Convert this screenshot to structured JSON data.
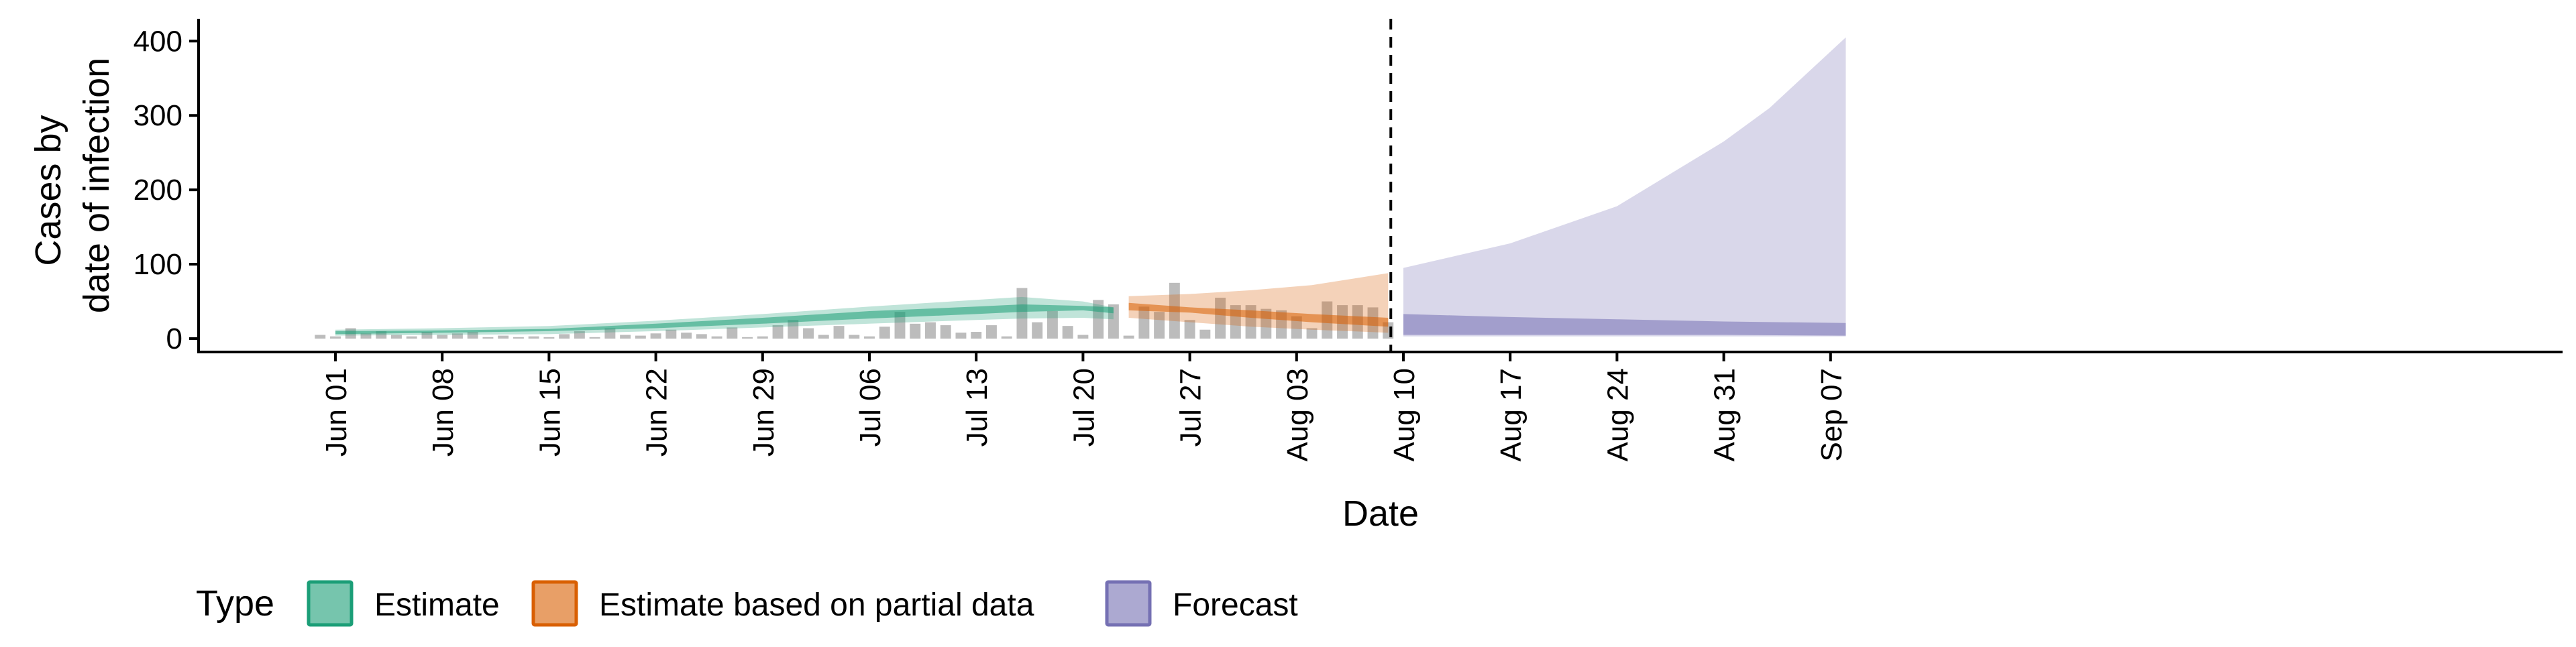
{
  "chart_data": {
    "type": "area",
    "xlabel": "Date",
    "ylabel_lines": [
      "Cases by",
      "date of infection"
    ],
    "ylim": [
      -18,
      430
    ],
    "yticks": [
      0,
      100,
      200,
      300,
      400
    ],
    "xlim": [
      "2020-05-24",
      "2020-09-14"
    ],
    "xticks": [
      {
        "date": "2020-06-01",
        "label": "Jun 01"
      },
      {
        "date": "2020-06-08",
        "label": "Jun 08"
      },
      {
        "date": "2020-06-15",
        "label": "Jun 15"
      },
      {
        "date": "2020-06-22",
        "label": "Jun 22"
      },
      {
        "date": "2020-06-29",
        "label": "Jun 29"
      },
      {
        "date": "2020-07-06",
        "label": "Jul 06"
      },
      {
        "date": "2020-07-13",
        "label": "Jul 13"
      },
      {
        "date": "2020-07-20",
        "label": "Jul 20"
      },
      {
        "date": "2020-07-27",
        "label": "Jul 27"
      },
      {
        "date": "2020-08-03",
        "label": "Aug 03"
      },
      {
        "date": "2020-08-10",
        "label": "Aug 10"
      },
      {
        "date": "2020-08-17",
        "label": "Aug 17"
      },
      {
        "date": "2020-08-24",
        "label": "Aug 24"
      },
      {
        "date": "2020-08-31",
        "label": "Aug 31"
      },
      {
        "date": "2020-09-07",
        "label": "Sep 07"
      }
    ],
    "vline_date": "2020-08-09",
    "grid": false,
    "legend": {
      "position": "bottom-left",
      "title": "Type",
      "entries": [
        {
          "label": "Estimate",
          "color": "#1b9e77"
        },
        {
          "label": "Estimate based on partial data",
          "color": "#d95f02"
        },
        {
          "label": "Forecast",
          "color": "#7570b3"
        }
      ]
    },
    "bars": {
      "color": "#a6a6a6",
      "data": [
        [
          "2020-05-31",
          5
        ],
        [
          "2020-06-01",
          3
        ],
        [
          "2020-06-02",
          14
        ],
        [
          "2020-06-03",
          7
        ],
        [
          "2020-06-04",
          10
        ],
        [
          "2020-06-05",
          5
        ],
        [
          "2020-06-06",
          3
        ],
        [
          "2020-06-07",
          9
        ],
        [
          "2020-06-08",
          5
        ],
        [
          "2020-06-09",
          7
        ],
        [
          "2020-06-10",
          9
        ],
        [
          "2020-06-11",
          2
        ],
        [
          "2020-06-12",
          4
        ],
        [
          "2020-06-13",
          2
        ],
        [
          "2020-06-14",
          3
        ],
        [
          "2020-06-15",
          2
        ],
        [
          "2020-06-16",
          6
        ],
        [
          "2020-06-17",
          10
        ],
        [
          "2020-06-18",
          2
        ],
        [
          "2020-06-19",
          14
        ],
        [
          "2020-06-20",
          5
        ],
        [
          "2020-06-21",
          4
        ],
        [
          "2020-06-22",
          7
        ],
        [
          "2020-06-23",
          12
        ],
        [
          "2020-06-24",
          8
        ],
        [
          "2020-06-25",
          6
        ],
        [
          "2020-06-26",
          3
        ],
        [
          "2020-06-27",
          15
        ],
        [
          "2020-06-28",
          2
        ],
        [
          "2020-06-29",
          3
        ],
        [
          "2020-06-30",
          18
        ],
        [
          "2020-07-01",
          25
        ],
        [
          "2020-07-02",
          14
        ],
        [
          "2020-07-03",
          5
        ],
        [
          "2020-07-04",
          17
        ],
        [
          "2020-07-05",
          5
        ],
        [
          "2020-07-06",
          3
        ],
        [
          "2020-07-07",
          16
        ],
        [
          "2020-07-08",
          36
        ],
        [
          "2020-07-09",
          20
        ],
        [
          "2020-07-10",
          22
        ],
        [
          "2020-07-11",
          18
        ],
        [
          "2020-07-12",
          8
        ],
        [
          "2020-07-13",
          9
        ],
        [
          "2020-07-14",
          18
        ],
        [
          "2020-07-15",
          3
        ],
        [
          "2020-07-16",
          68
        ],
        [
          "2020-07-17",
          22
        ],
        [
          "2020-07-18",
          37
        ],
        [
          "2020-07-19",
          17
        ],
        [
          "2020-07-20",
          5
        ],
        [
          "2020-07-21",
          52
        ],
        [
          "2020-07-22",
          46
        ],
        [
          "2020-07-23",
          4
        ],
        [
          "2020-07-24",
          43
        ],
        [
          "2020-07-25",
          36
        ],
        [
          "2020-07-26",
          75
        ],
        [
          "2020-07-27",
          25
        ],
        [
          "2020-07-28",
          12
        ],
        [
          "2020-07-29",
          55
        ],
        [
          "2020-07-30",
          45
        ],
        [
          "2020-07-31",
          45
        ],
        [
          "2020-08-01",
          40
        ],
        [
          "2020-08-02",
          38
        ],
        [
          "2020-08-03",
          30
        ],
        [
          "2020-08-04",
          14
        ],
        [
          "2020-08-05",
          50
        ],
        [
          "2020-08-06",
          45
        ],
        [
          "2020-08-07",
          45
        ],
        [
          "2020-08-08",
          42
        ],
        [
          "2020-08-09",
          22
        ]
      ]
    },
    "series": [
      {
        "name": "Estimate",
        "color": "#1b9e77",
        "outer": [
          [
            "2020-06-01",
            4,
            12
          ],
          [
            "2020-06-08",
            5,
            14
          ],
          [
            "2020-06-15",
            6,
            17
          ],
          [
            "2020-06-22",
            10,
            24
          ],
          [
            "2020-06-29",
            15,
            33
          ],
          [
            "2020-07-06",
            20,
            43
          ],
          [
            "2020-07-13",
            25,
            52
          ],
          [
            "2020-07-16",
            27,
            56
          ],
          [
            "2020-07-20",
            28,
            50
          ],
          [
            "2020-07-22",
            26,
            42
          ]
        ],
        "inner": [
          [
            "2020-06-01",
            6,
            10
          ],
          [
            "2020-06-08",
            8,
            11
          ],
          [
            "2020-06-15",
            10,
            13
          ],
          [
            "2020-06-22",
            14,
            20
          ],
          [
            "2020-06-29",
            20,
            28
          ],
          [
            "2020-07-06",
            27,
            37
          ],
          [
            "2020-07-13",
            33,
            43
          ],
          [
            "2020-07-16",
            36,
            46
          ],
          [
            "2020-07-20",
            38,
            44
          ],
          [
            "2020-07-22",
            34,
            42
          ]
        ]
      },
      {
        "name": "Estimate based on partial data",
        "color": "#d95f02",
        "outer": [
          [
            "2020-07-23",
            28,
            57
          ],
          [
            "2020-07-27",
            22,
            60
          ],
          [
            "2020-07-31",
            16,
            65
          ],
          [
            "2020-08-04",
            12,
            72
          ],
          [
            "2020-08-09",
            8,
            88
          ]
        ],
        "inner": [
          [
            "2020-07-23",
            38,
            48
          ],
          [
            "2020-07-27",
            35,
            42
          ],
          [
            "2020-07-31",
            28,
            38
          ],
          [
            "2020-08-04",
            22,
            33
          ],
          [
            "2020-08-09",
            16,
            28
          ]
        ]
      },
      {
        "name": "Forecast",
        "color": "#7570b3",
        "outer": [
          [
            "2020-08-10",
            3,
            95
          ],
          [
            "2020-08-17",
            3,
            128
          ],
          [
            "2020-08-24",
            3,
            178
          ],
          [
            "2020-08-31",
            3,
            265
          ],
          [
            "2020-09-03",
            3,
            310
          ],
          [
            "2020-09-08",
            3,
            405
          ]
        ],
        "inner": [
          [
            "2020-08-10",
            5,
            33
          ],
          [
            "2020-08-17",
            5,
            29
          ],
          [
            "2020-08-24",
            5,
            26
          ],
          [
            "2020-08-31",
            5,
            23
          ],
          [
            "2020-09-08",
            4,
            21
          ]
        ]
      }
    ]
  }
}
